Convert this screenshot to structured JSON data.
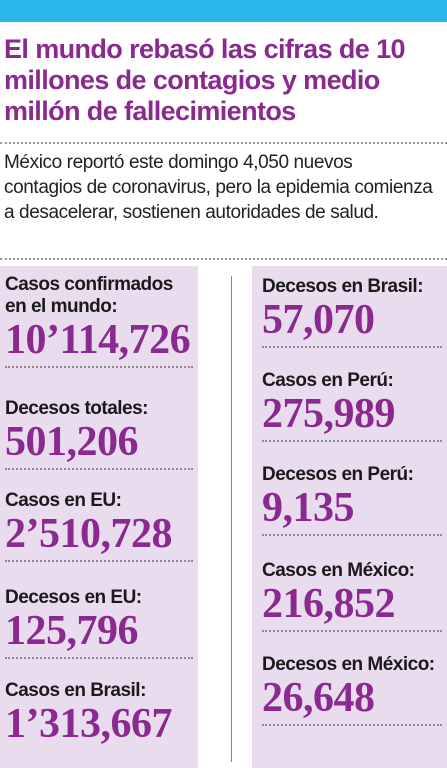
{
  "headline": "El mundo rebasó las cifras de 10 millones de contagios y medio millón de fallecimientos",
  "dek": "México reportó este domingo 4,050 nuevos contagios de coronavirus, pero la epidemia comienza a desacelerar, sostienen autoridades de salud.",
  "left_stats": [
    {
      "label": "Casos confirmados en el mundo:",
      "value": "10’114,726"
    },
    {
      "label": "Decesos totales:",
      "value": "501,206"
    },
    {
      "label": "Casos en EU:",
      "value": "2’510,728"
    },
    {
      "label": "Decesos en EU:",
      "value": "125,796"
    },
    {
      "label": "Casos en Brasil:",
      "value": "1’313,667"
    }
  ],
  "right_stats": [
    {
      "label": "Decesos en Brasil:",
      "value": "57,070"
    },
    {
      "label": "Casos en Perú:",
      "value": "275,989"
    },
    {
      "label": "Decesos en Perú:",
      "value": "9,135"
    },
    {
      "label": "Casos en México:",
      "value": "216,852"
    },
    {
      "label": "Decesos en México:",
      "value": "26,648"
    }
  ],
  "colors": {
    "topbar": "#29b6e8",
    "accent": "#8a2a8f",
    "panel": "#e9dcef"
  }
}
